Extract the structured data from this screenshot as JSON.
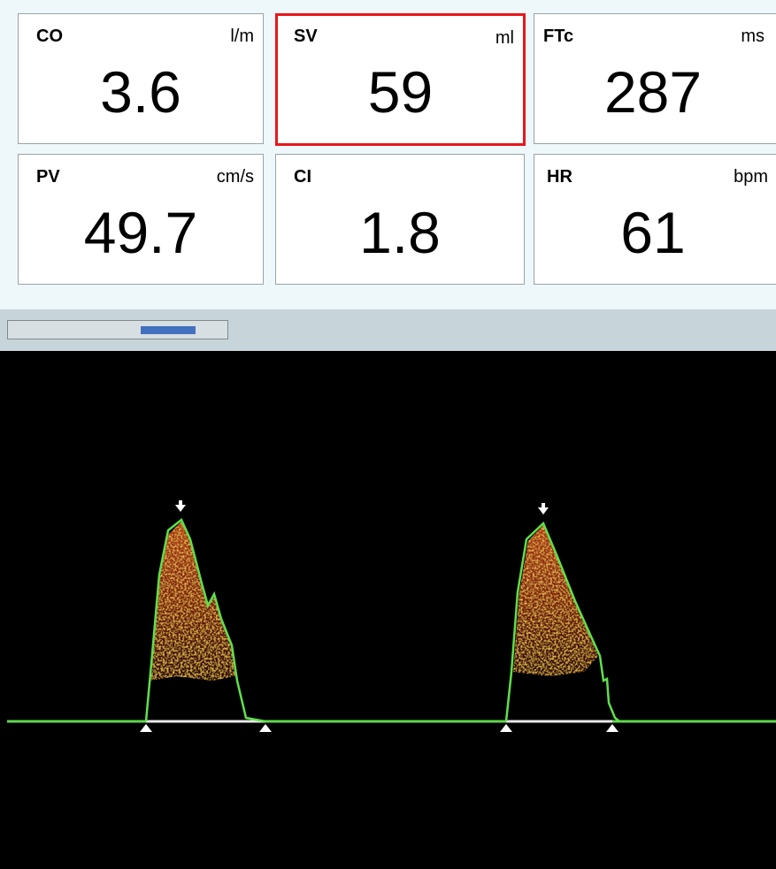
{
  "tiles": [
    {
      "label": "CO",
      "unit": "l/m",
      "value": "3.6"
    },
    {
      "label": "SV",
      "unit": "ml",
      "value": "59"
    },
    {
      "label": "FTc",
      "unit": "ms",
      "value": "287"
    },
    {
      "label": "PV",
      "unit": "cm/s",
      "value": "49.7"
    },
    {
      "label": "CI",
      "unit": "",
      "value": "1.8"
    },
    {
      "label": "HR",
      "unit": "bpm",
      "value": "61"
    }
  ]
}
